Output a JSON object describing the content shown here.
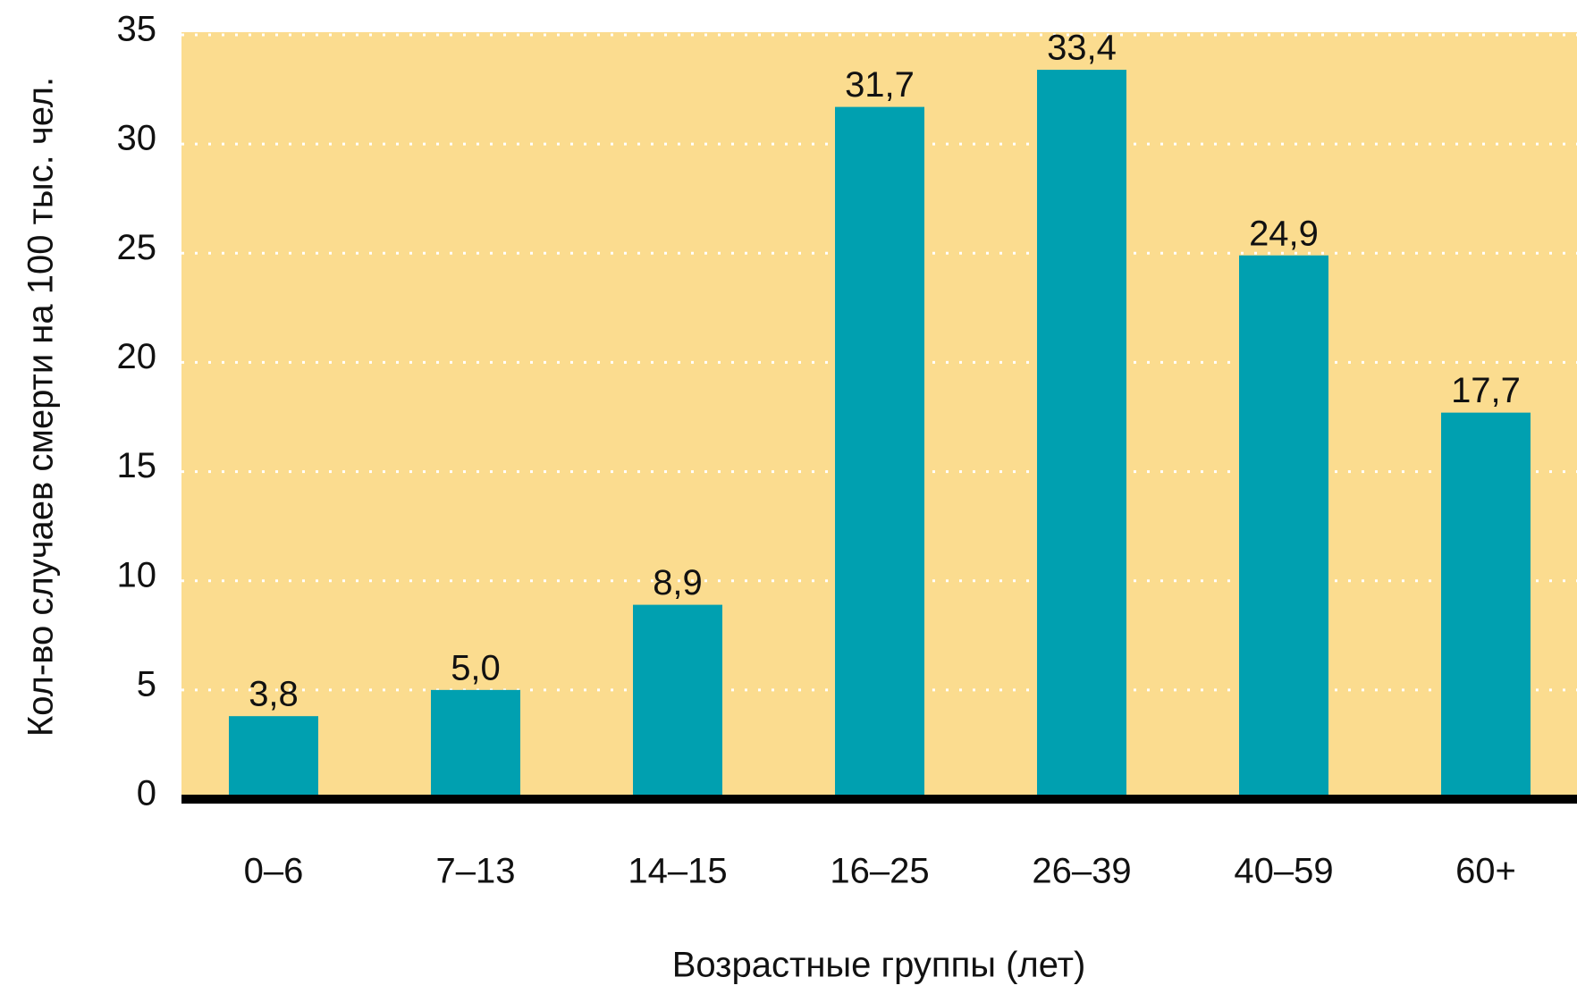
{
  "chart_data": {
    "type": "bar",
    "x_label": "Возрастные группы (лет)",
    "y_label": "Кол-во случаев смерти на 100 тыс. чел.",
    "categories": [
      "0–6",
      "7–13",
      "14–15",
      "16–25",
      "26–39",
      "40–59",
      "60+"
    ],
    "values": [
      3.8,
      5.0,
      8.9,
      31.7,
      33.4,
      24.9,
      17.7
    ],
    "value_labels": [
      "3,8",
      "5,0",
      "8,9",
      "31,7",
      "33,4",
      "24,9",
      "17,7"
    ],
    "color": "#00a0b0",
    "ylim": [
      0,
      35
    ],
    "yticks": [
      0,
      5,
      10,
      15,
      20,
      25,
      30,
      35
    ],
    "grid": true
  }
}
